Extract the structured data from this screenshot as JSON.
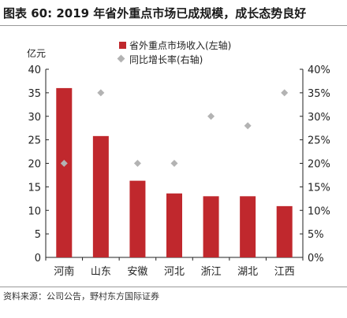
{
  "header": {
    "title": "图表 60: 2019 年省外重点市场已成规模，成长态势良好"
  },
  "footer": {
    "source": "资料来源：公司公告，野村东方国际证券"
  },
  "colors": {
    "bar": "#c0282d",
    "marker": "#b3b3b3",
    "axis": "#222222"
  },
  "chart_data": {
    "type": "bar",
    "title": "",
    "ylabel": "亿元",
    "categories": [
      "河南",
      "山东",
      "安徽",
      "河北",
      "浙江",
      "湖北",
      "江西"
    ],
    "series": [
      {
        "name": "省外重点市场收入(左轴)",
        "type": "bar",
        "axis": "left",
        "values": [
          36,
          25.8,
          16.3,
          13.6,
          13,
          13,
          10.9
        ]
      },
      {
        "name": "同比增长率(右轴)",
        "type": "scatter",
        "axis": "right",
        "values": [
          20,
          35,
          20,
          20,
          30,
          28,
          35
        ]
      }
    ],
    "ylim": [
      0,
      40
    ],
    "yticks": [
      "0",
      "5",
      "10",
      "15",
      "20",
      "25",
      "30",
      "35",
      "40"
    ],
    "y2lim": [
      0,
      40
    ],
    "y2ticks": [
      "0%",
      "5%",
      "10%",
      "15%",
      "20%",
      "25%",
      "30%",
      "35%",
      "40%"
    ],
    "grid": false,
    "legend": "top"
  }
}
